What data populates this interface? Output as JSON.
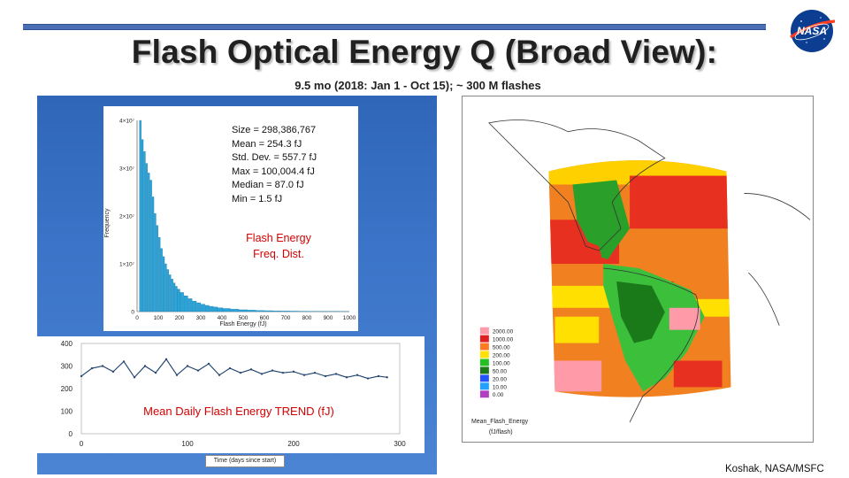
{
  "title": "Flash Optical Energy Q (Broad View):",
  "subtitle": "9.5 mo (2018: Jan 1 - Oct 15); ~ 300 M flashes",
  "logo_text": "NASA",
  "histogram": {
    "stats": [
      "Size = 298,386,767",
      "Mean = 254.3 fJ",
      "Std. Dev. = 557.7 fJ",
      "Max = 100,004.4 fJ",
      "Median = 87.0 fJ",
      "Min = 1.5 fJ"
    ],
    "label_line1": "Flash Energy",
    "label_line2": "Freq. Dist.",
    "y_axis_label": "Frequency",
    "x_axis_label": "Flash Energy (fJ)",
    "y_ticks": [
      "4×10⁷",
      "3×10⁷",
      "2×10⁷",
      "1×10⁷",
      "0"
    ],
    "x_ticks": [
      "0",
      "100",
      "200",
      "300",
      "400",
      "500",
      "600",
      "700",
      "800",
      "900",
      "1000"
    ]
  },
  "timeseries": {
    "label": "Mean Daily Flash Energy TREND (fJ)",
    "y_ticks": [
      "400",
      "300",
      "200",
      "100",
      "0"
    ],
    "x_ticks": [
      "0",
      "100",
      "200",
      "300"
    ],
    "x_axis_label": "Time (days since start)"
  },
  "map": {
    "legend_values": [
      "2000.00",
      "1000.00",
      "500.00",
      "200.00",
      "100.00",
      "50.00",
      "20.00",
      "10.00",
      "0.00"
    ],
    "legend_colors": [
      "#ff9aa8",
      "#e02020",
      "#ff7a20",
      "#ffe000",
      "#22c020",
      "#1a7a1a",
      "#2255ff",
      "#20a0ff",
      "#b040c0"
    ],
    "legend_title": "Mean_Flash_Energy",
    "legend_units": "(fJ/flash)"
  },
  "credit": "Koshak, NASA/MSFC",
  "chart_data": [
    {
      "type": "bar",
      "title": "",
      "xlabel": "Flash Energy (fJ)",
      "ylabel": "Frequency",
      "x": [
        15,
        25,
        35,
        45,
        55,
        65,
        75,
        85,
        95,
        105,
        115,
        125,
        135,
        145,
        155,
        165,
        175,
        185,
        195,
        210,
        230,
        250,
        270,
        290,
        310,
        330,
        350,
        370,
        390,
        420,
        460,
        500,
        540,
        580,
        620,
        660,
        700,
        740,
        780,
        820,
        860,
        900,
        940,
        980
      ],
      "values": [
        40000000,
        36000000,
        33500000,
        31000000,
        29000000,
        27500000,
        24000000,
        20500000,
        18000000,
        15500000,
        13200000,
        11500000,
        10000000,
        8800000,
        7700000,
        6800000,
        6000000,
        5300000,
        4700000,
        4000000,
        3300000,
        2700000,
        2200000,
        1850000,
        1550000,
        1300000,
        1100000,
        950000,
        800000,
        650000,
        500000,
        380000,
        300000,
        240000,
        190000,
        150000,
        120000,
        100000,
        80000,
        65000,
        50000,
        40000,
        32000,
        25000
      ],
      "xlim": [
        0,
        1000
      ],
      "ylim": [
        0,
        40000000
      ]
    },
    {
      "type": "line",
      "title": "Mean Daily Flash Energy TREND (fJ)",
      "xlabel": "Time (days since start)",
      "ylabel": "",
      "xlim": [
        0,
        300
      ],
      "ylim": [
        0,
        400
      ],
      "x": [
        0,
        10,
        20,
        30,
        40,
        50,
        60,
        70,
        80,
        90,
        100,
        110,
        120,
        130,
        140,
        150,
        160,
        170,
        180,
        190,
        200,
        210,
        220,
        230,
        240,
        250,
        260,
        270,
        280,
        288
      ],
      "values": [
        255,
        290,
        300,
        275,
        320,
        250,
        300,
        270,
        330,
        260,
        300,
        280,
        310,
        260,
        290,
        270,
        285,
        265,
        280,
        270,
        275,
        260,
        270,
        255,
        265,
        250,
        260,
        245,
        255,
        250
      ]
    }
  ]
}
